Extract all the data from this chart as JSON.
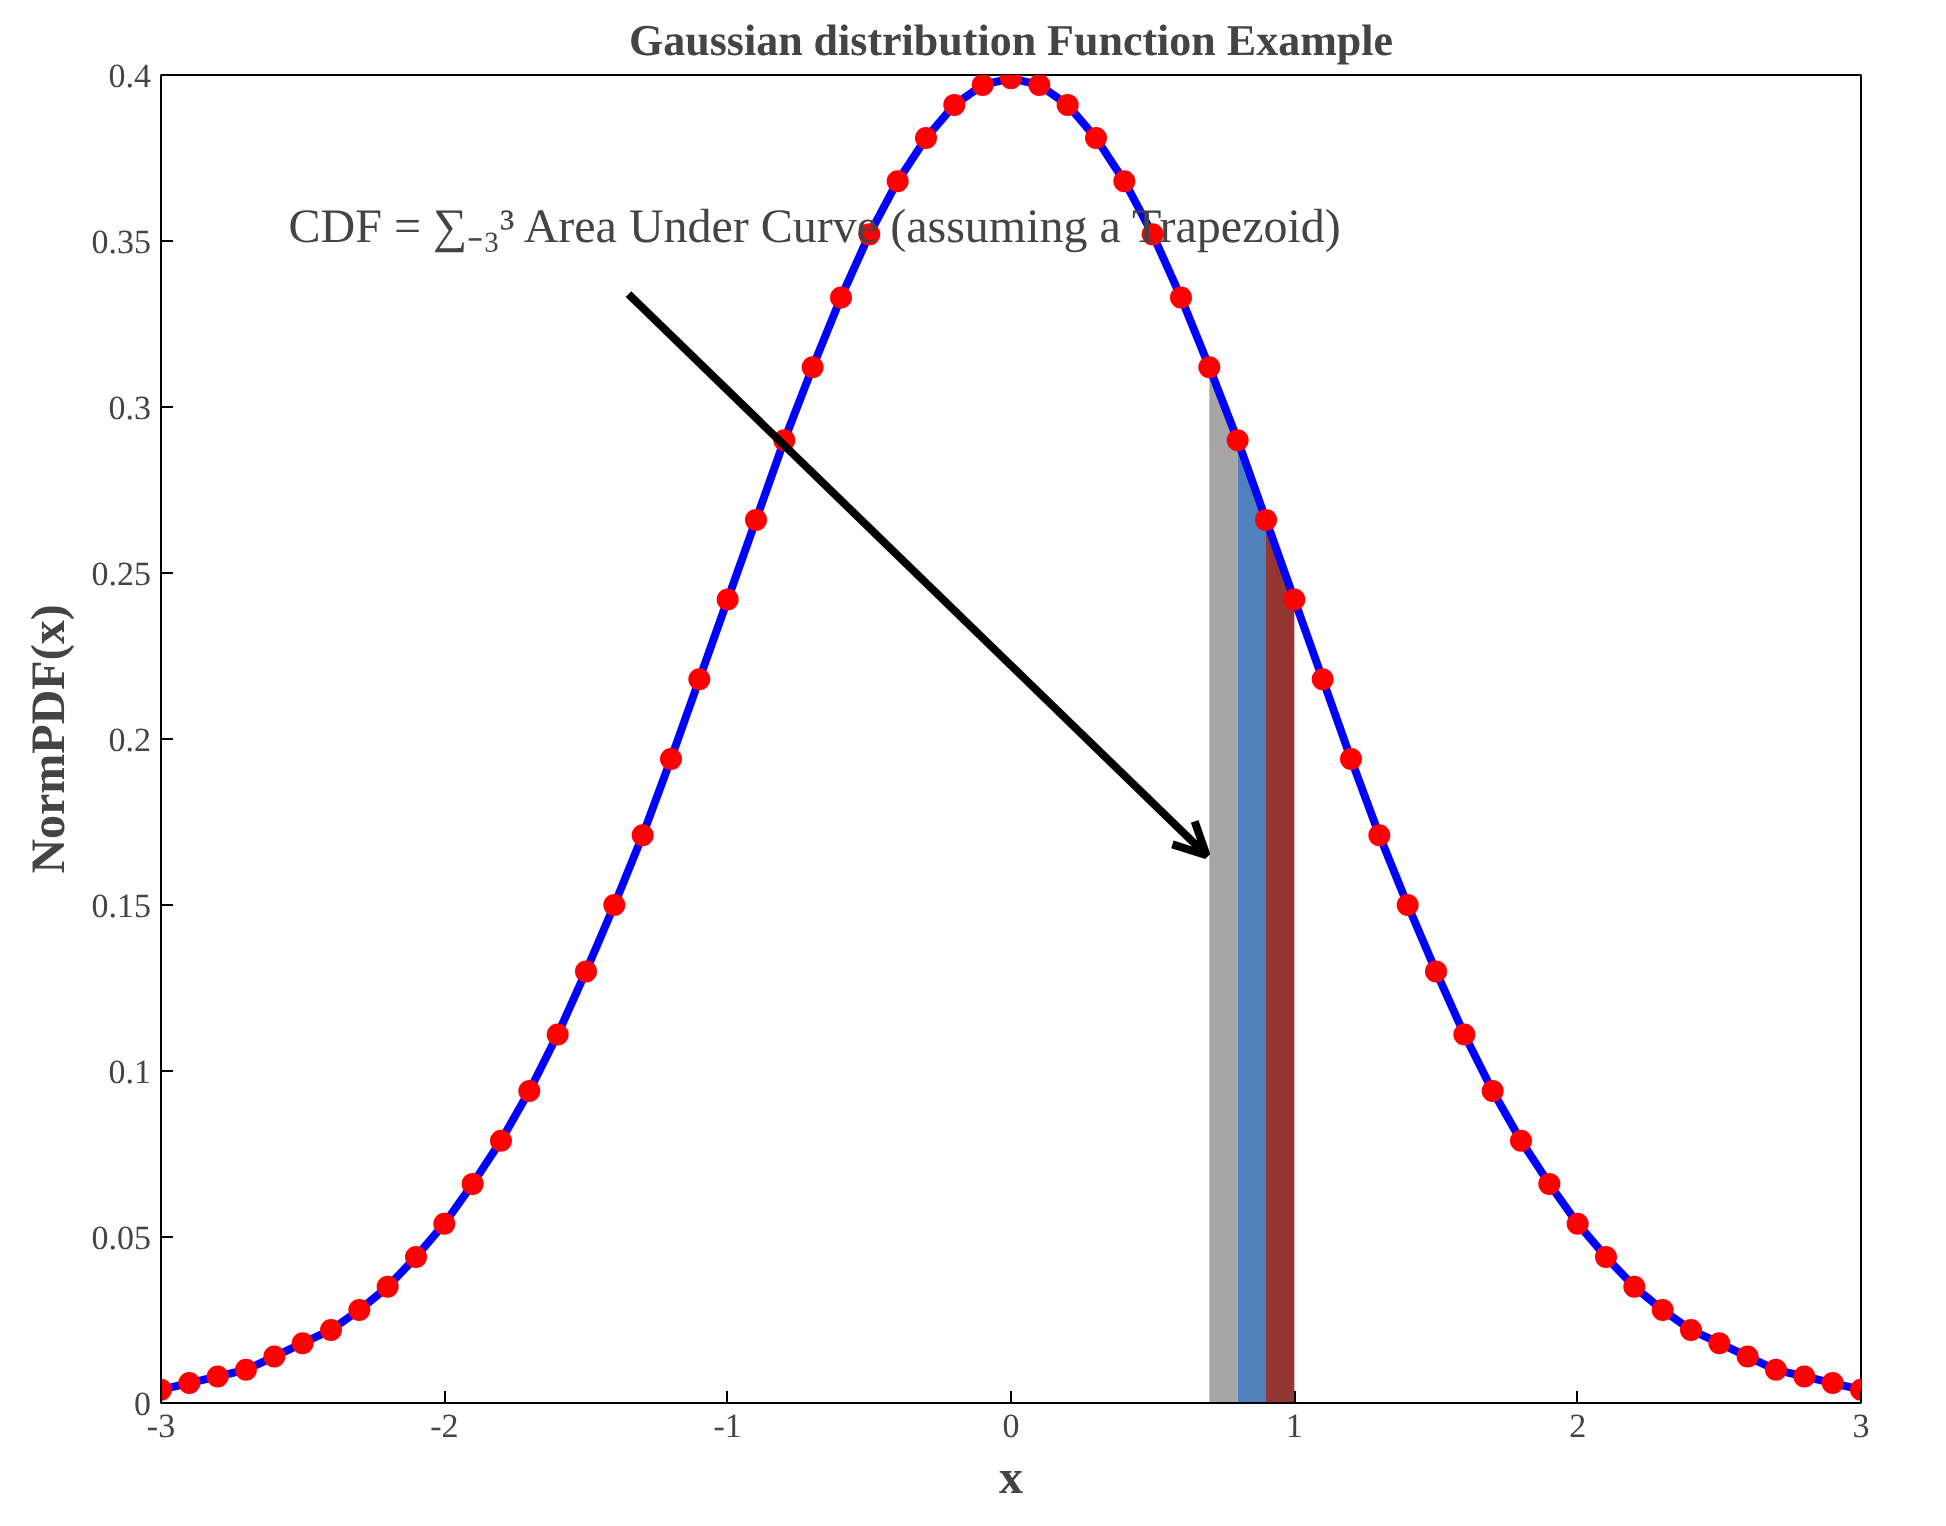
{
  "chart_data": {
    "type": "line",
    "title": "Gaussian distribution Function Example",
    "xlabel": "x",
    "ylabel": "NormPDF(x)",
    "x": [
      -3.0,
      -2.9,
      -2.8,
      -2.7,
      -2.6,
      -2.5,
      -2.4,
      -2.3,
      -2.2,
      -2.1,
      -2.0,
      -1.9,
      -1.8,
      -1.7,
      -1.6,
      -1.5,
      -1.4,
      -1.3,
      -1.2,
      -1.1,
      -1.0,
      -0.9,
      -0.8,
      -0.7,
      -0.6,
      -0.5,
      -0.4,
      -0.3,
      -0.2,
      -0.1,
      0.0,
      0.1,
      0.2,
      0.3,
      0.4,
      0.5,
      0.6,
      0.7,
      0.8,
      0.9,
      1.0,
      1.1,
      1.2,
      1.3,
      1.4,
      1.5,
      1.6,
      1.7,
      1.8,
      1.9,
      2.0,
      2.1,
      2.2,
      2.3,
      2.4,
      2.5,
      2.6,
      2.7,
      2.8,
      2.9,
      3.0
    ],
    "series": [
      {
        "type": "area",
        "color": "#a6a6a6",
        "x": [
          0.7,
          0.8
        ],
        "values": [
          0.312,
          0.29
        ]
      },
      {
        "type": "area",
        "color": "#4f81bd",
        "x": [
          0.8,
          0.9
        ],
        "values": [
          0.29,
          0.266
        ]
      },
      {
        "type": "area",
        "color": "#943634",
        "x": [
          0.9,
          1.0
        ],
        "values": [
          0.266,
          0.242
        ]
      },
      {
        "color": "#0000ff",
        "marker": "none",
        "values": [
          0.004,
          0.006,
          0.008,
          0.01,
          0.014,
          0.018,
          0.022,
          0.028,
          0.035,
          0.044,
          0.054,
          0.066,
          0.079,
          0.094,
          0.111,
          0.13,
          0.15,
          0.171,
          0.194,
          0.218,
          0.242,
          0.266,
          0.29,
          0.312,
          0.333,
          0.352,
          0.368,
          0.381,
          0.391,
          0.397,
          0.399,
          0.397,
          0.391,
          0.381,
          0.368,
          0.352,
          0.333,
          0.312,
          0.29,
          0.266,
          0.242,
          0.218,
          0.194,
          0.171,
          0.15,
          0.13,
          0.111,
          0.094,
          0.079,
          0.066,
          0.054,
          0.044,
          0.035,
          0.028,
          0.022,
          0.018,
          0.014,
          0.01,
          0.008,
          0.006,
          0.004
        ]
      },
      {
        "type": "scatter",
        "color": "#ff0000",
        "marker": "circle",
        "values": [
          0.004,
          0.006,
          0.008,
          0.01,
          0.014,
          0.018,
          0.022,
          0.028,
          0.035,
          0.044,
          0.054,
          0.066,
          0.079,
          0.094,
          0.111,
          0.13,
          0.15,
          0.171,
          0.194,
          0.218,
          0.242,
          0.266,
          0.29,
          0.312,
          0.333,
          0.352,
          0.368,
          0.381,
          0.391,
          0.397,
          0.399,
          0.397,
          0.391,
          0.381,
          0.368,
          0.352,
          0.333,
          0.312,
          0.29,
          0.266,
          0.242,
          0.218,
          0.194,
          0.171,
          0.15,
          0.13,
          0.111,
          0.094,
          0.079,
          0.066,
          0.054,
          0.044,
          0.035,
          0.028,
          0.022,
          0.018,
          0.014,
          0.01,
          0.008,
          0.006,
          0.004
        ]
      }
    ],
    "annotations": [
      {
        "text": "CDF = ∑₋₃³ Area Under Curve (assuming a Trapezoid)",
        "x": 0.69,
        "y": 0.165
      }
    ],
    "xlim": [
      -3,
      3
    ],
    "ylim": [
      0,
      0.4
    ],
    "xticks": [
      -3,
      -2,
      -1,
      0,
      1,
      2,
      3
    ],
    "yticks": [
      0,
      0.05,
      0.1,
      0.15,
      0.2,
      0.25,
      0.3,
      0.35,
      0.4
    ],
    "grid": false
  }
}
